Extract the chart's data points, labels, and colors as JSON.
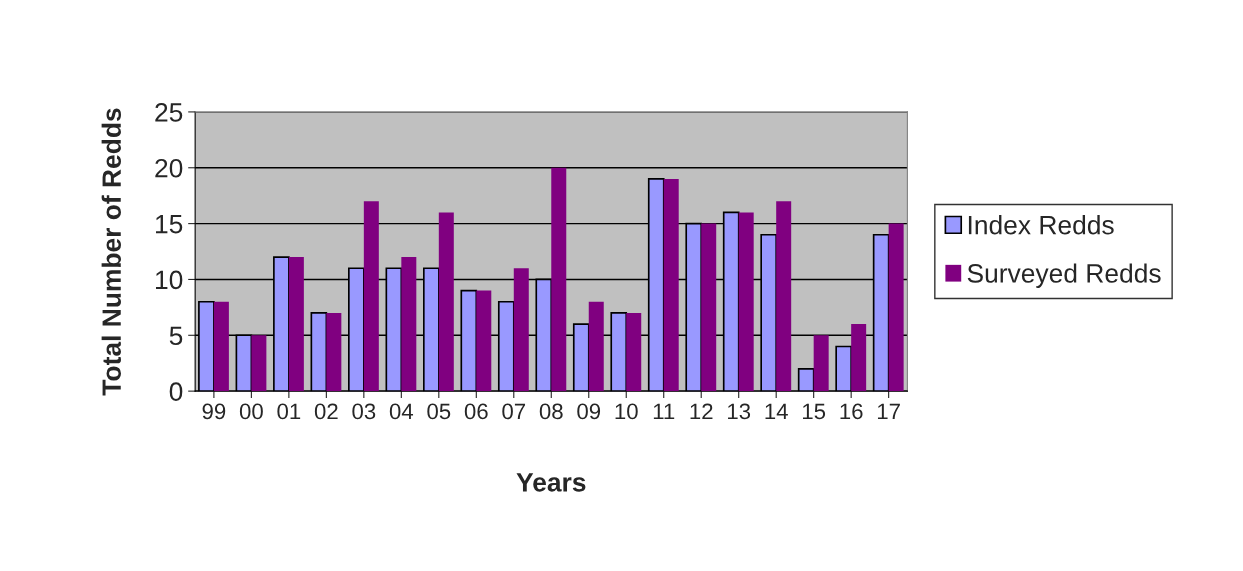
{
  "chart_data": {
    "type": "bar",
    "xlabel": "Years",
    "ylabel": "Total Number of Redds",
    "categories": [
      "99",
      "00",
      "01",
      "02",
      "03",
      "04",
      "05",
      "06",
      "07",
      "08",
      "09",
      "10",
      "11",
      "12",
      "13",
      "14",
      "15",
      "16",
      "17"
    ],
    "series": [
      {
        "name": "Index Redds",
        "color": "#9999ff",
        "values": [
          8,
          5,
          12,
          7,
          11,
          11,
          11,
          9,
          8,
          10,
          6,
          7,
          19,
          15,
          16,
          14,
          2,
          4,
          14
        ]
      },
      {
        "name": "Surveyed Redds",
        "color": "#800080",
        "values": [
          8,
          5,
          12,
          7,
          17,
          12,
          16,
          9,
          11,
          20,
          8,
          7,
          19,
          15,
          16,
          17,
          5,
          6,
          15
        ]
      }
    ],
    "ylim": [
      0,
      25
    ],
    "yticks": [
      0,
      5,
      10,
      15,
      20,
      25
    ],
    "grid": "y",
    "legend": "right"
  }
}
